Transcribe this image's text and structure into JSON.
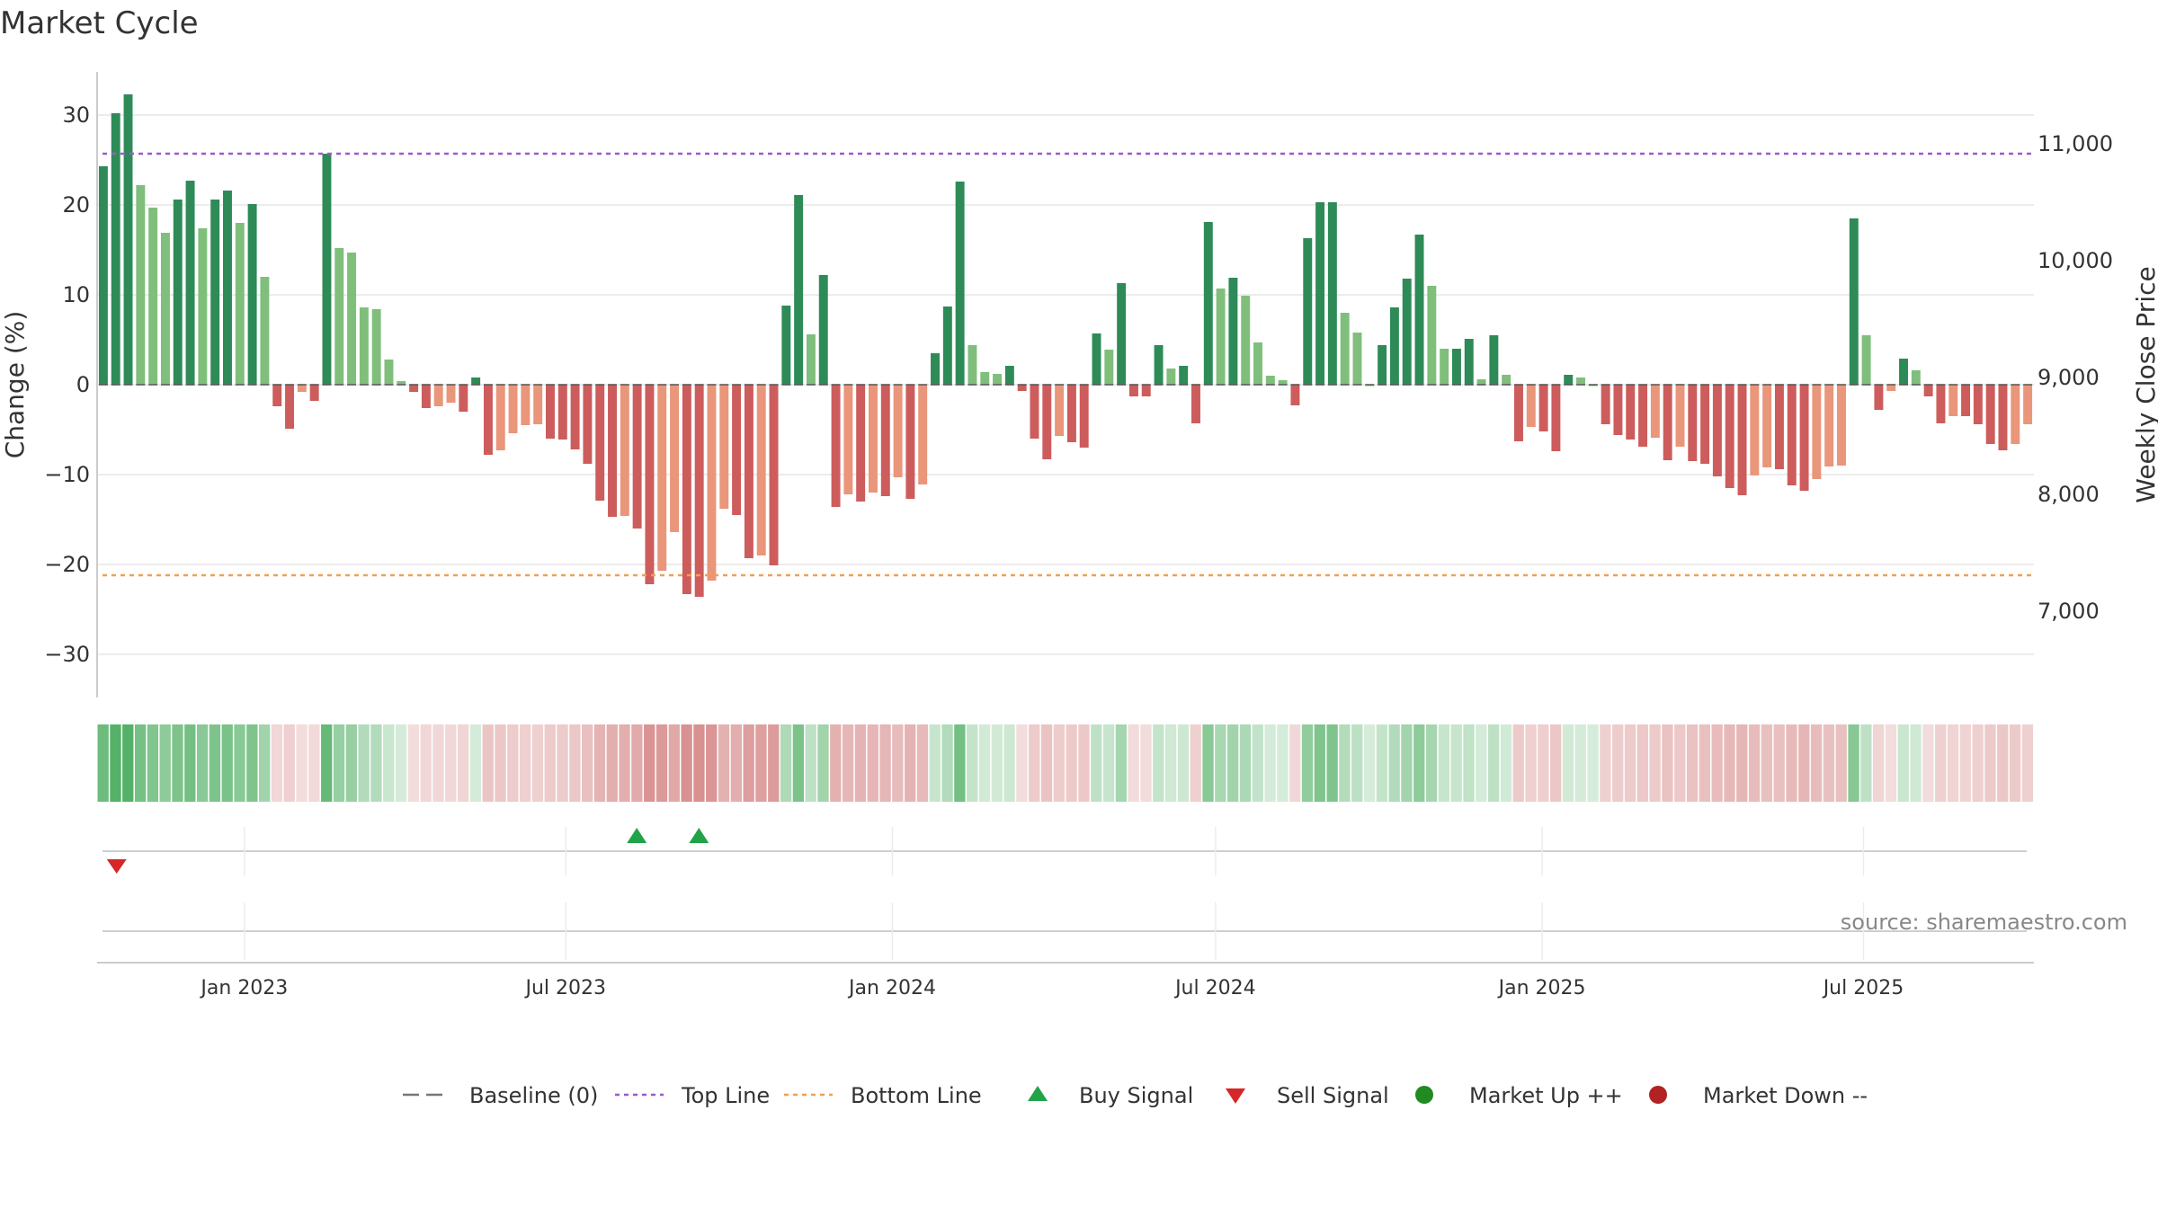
{
  "chart_data": {
    "type": "bar",
    "title": "Market Cycle",
    "ylabel_left": "Change (%)",
    "ylabel_right": "Weekly Close Price",
    "ylim_left": [
      -35,
      35
    ],
    "ylim_right": [
      6500,
      11500
    ],
    "yticks_left": [
      30,
      20,
      10,
      0,
      -10,
      -20,
      -30
    ],
    "ytick_labels_left": [
      "30",
      "20",
      "10",
      "0",
      "−10",
      "−20",
      "−30"
    ],
    "yticks_right": [
      11000,
      10000,
      9000,
      8000,
      7000
    ],
    "ytick_labels_right": [
      "11,000",
      "10,000",
      "9,000",
      "8,000",
      "7,000"
    ],
    "xlim": [
      "2022-10-10",
      "2025-10-05"
    ],
    "xticks": [
      "2023-01-01",
      "2023-07-01",
      "2024-01-01",
      "2024-07-01",
      "2025-01-01",
      "2025-07-01"
    ],
    "xtick_labels": [
      "Jan 2023",
      "Jul 2023",
      "Jan 2024",
      "Jul 2024",
      "Jan 2025",
      "Jul 2025"
    ],
    "top_line": 25.7,
    "bottom_line": -21.2,
    "grid": true,
    "legend_position": "bottom-center",
    "source_text": "source: sharemaestro.com",
    "start_week": "2022-10-14",
    "values": [
      24.3,
      30.2,
      32.3,
      22.2,
      19.7,
      16.9,
      20.6,
      22.7,
      17.4,
      20.6,
      21.6,
      18.0,
      20.1,
      12.0,
      -2.4,
      -4.9,
      -0.8,
      -1.8,
      25.7,
      15.2,
      14.7,
      8.6,
      8.4,
      2.8,
      0.4,
      -0.8,
      -2.6,
      -2.4,
      -2.0,
      -3.0,
      0.8,
      -7.8,
      -7.3,
      -5.4,
      -4.5,
      -4.4,
      -6.0,
      -6.1,
      -7.2,
      -8.8,
      -12.9,
      -14.7,
      -14.6,
      -16.0,
      -22.2,
      -20.7,
      -16.4,
      -23.3,
      -23.6,
      -21.8,
      -13.8,
      -14.5,
      -19.3,
      -19.0,
      -20.1,
      8.8,
      21.1,
      5.6,
      12.2,
      -13.6,
      -12.2,
      -13.0,
      -12.0,
      -12.4,
      -10.3,
      -12.7,
      -11.1,
      3.5,
      8.7,
      22.6,
      4.4,
      1.4,
      1.2,
      2.1,
      -0.7,
      -6.0,
      -8.3,
      -5.7,
      -6.4,
      -7.0,
      5.7,
      3.9,
      11.3,
      -1.3,
      -1.3,
      4.4,
      1.8,
      2.1,
      -4.3,
      18.1,
      10.7,
      11.9,
      9.9,
      4.7,
      1.0,
      0.5,
      -2.3,
      16.3,
      20.3,
      20.3,
      8.0,
      5.8,
      0.0,
      4.4,
      8.6,
      11.8,
      16.7,
      11.0,
      4.0,
      4.0,
      5.1,
      0.6,
      5.5,
      1.1,
      -6.3,
      -4.7,
      -5.2,
      -7.4,
      1.1,
      0.8,
      0.0,
      -4.4,
      -5.6,
      -6.1,
      -6.9,
      -5.9,
      -8.4,
      -6.9,
      -8.5,
      -8.8,
      -10.2,
      -11.5,
      -12.3,
      -10.1,
      -9.2,
      -9.4,
      -11.2,
      -11.8,
      -10.5,
      -9.1,
      -9.0,
      18.5,
      5.5,
      -2.8,
      -0.7,
      2.9,
      1.6,
      -1.3,
      -4.3,
      -3.5,
      -3.5,
      -4.4,
      -6.6,
      -7.3,
      -6.6,
      -4.4
    ],
    "signals": [
      {
        "type": "buy",
        "date": "2023-08-10"
      },
      {
        "type": "buy",
        "date": "2023-09-14"
      },
      {
        "type": "sell",
        "date": "2022-10-21"
      }
    ]
  },
  "legend": [
    {
      "label": "Baseline (0)",
      "kind": "dash",
      "color": "#777777"
    },
    {
      "label": "Top Line",
      "kind": "dot",
      "color": "#9b59d0"
    },
    {
      "label": "Bottom Line",
      "kind": "dot",
      "color": "#f0a050"
    },
    {
      "label": "Buy Signal",
      "kind": "tri-up",
      "color": "#21a34a"
    },
    {
      "label": "Sell Signal",
      "kind": "tri-down",
      "color": "#d62728"
    },
    {
      "label": "Market Up ++",
      "kind": "circle",
      "color": "#218a21"
    },
    {
      "label": "Market Down --",
      "kind": "circle",
      "color": "#b22222"
    }
  ],
  "colors": {
    "up_strong": "#2e8b57",
    "up_weak": "#7fbf7b",
    "down_strong": "#cd5c5c",
    "down_weak": "#e9967a",
    "grid": "#e6e6e6",
    "axis": "#cccccc"
  }
}
